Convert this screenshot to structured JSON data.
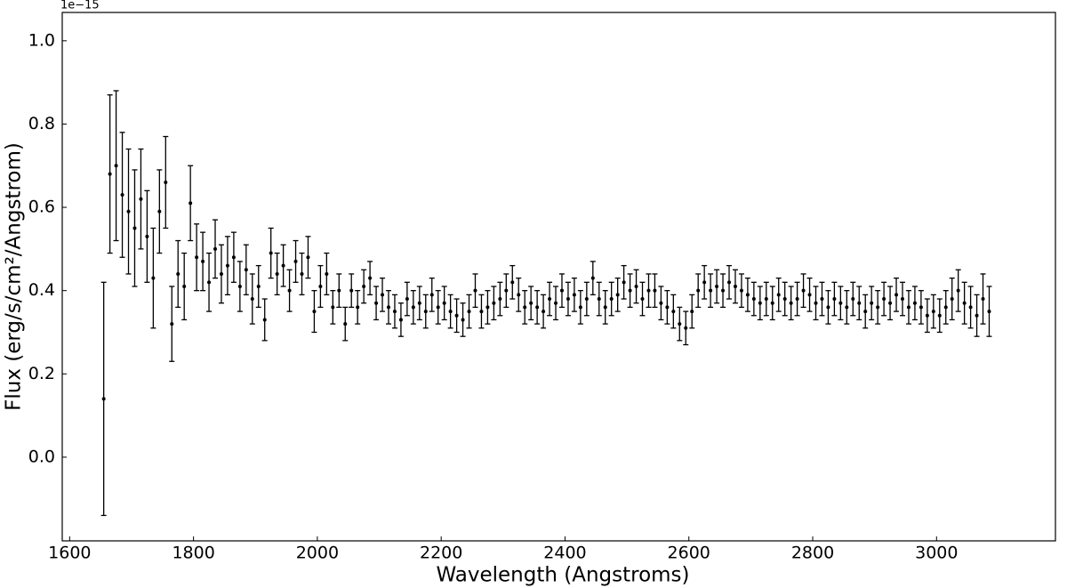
{
  "chart_data": {
    "type": "errorbar-scatter",
    "xlabel": "Wavelength (Angstroms)",
    "ylabel": "Flux (erg/s/cm²/Angstrom)",
    "y_offset_label": "1e−15",
    "xlim": [
      1588,
      3192
    ],
    "ylim": [
      -0.201,
      1.068
    ],
    "xticks": [
      1600,
      1800,
      2000,
      2200,
      2400,
      2600,
      2800,
      3000
    ],
    "yticks": [
      {
        "value": 0,
        "label": "0.0"
      },
      0.2,
      0.4,
      0.6,
      0.8,
      {
        "value": 1,
        "label": "1.0"
      }
    ],
    "series": [
      {
        "color": "#000000",
        "x": [
          1655,
          1665,
          1675,
          1685,
          1695,
          1705,
          1715,
          1725,
          1735,
          1745,
          1755,
          1765,
          1775,
          1785,
          1795,
          1805,
          1815,
          1825,
          1835,
          1845,
          1855,
          1865,
          1875,
          1885,
          1895,
          1905,
          1915,
          1925,
          1935,
          1945,
          1955,
          1965,
          1975,
          1985,
          1995,
          2005,
          2015,
          2025,
          2035,
          2045,
          2055,
          2065,
          2075,
          2085,
          2095,
          2105,
          2115,
          2125,
          2135,
          2145,
          2155,
          2165,
          2175,
          2185,
          2195,
          2205,
          2215,
          2225,
          2235,
          2245,
          2255,
          2265,
          2275,
          2285,
          2295,
          2305,
          2315,
          2325,
          2335,
          2345,
          2355,
          2365,
          2375,
          2385,
          2395,
          2405,
          2415,
          2425,
          2435,
          2445,
          2455,
          2465,
          2475,
          2485,
          2495,
          2505,
          2515,
          2525,
          2535,
          2545,
          2555,
          2565,
          2575,
          2585,
          2595,
          2605,
          2615,
          2625,
          2635,
          2645,
          2655,
          2665,
          2675,
          2685,
          2695,
          2705,
          2715,
          2725,
          2735,
          2745,
          2755,
          2765,
          2775,
          2785,
          2795,
          2805,
          2815,
          2825,
          2835,
          2845,
          2855,
          2865,
          2875,
          2885,
          2895,
          2905,
          2915,
          2925,
          2935,
          2945,
          2955,
          2965,
          2975,
          2985,
          2995,
          3005,
          3015,
          3025,
          3035,
          3045,
          3055,
          3065,
          3075,
          3085
        ],
        "values": [
          0.14,
          0.68,
          0.7,
          0.63,
          0.59,
          0.55,
          0.62,
          0.53,
          0.43,
          0.59,
          0.66,
          0.32,
          0.44,
          0.41,
          0.61,
          0.48,
          0.47,
          0.42,
          0.5,
          0.44,
          0.46,
          0.48,
          0.41,
          0.45,
          0.38,
          0.41,
          0.33,
          0.49,
          0.44,
          0.46,
          0.4,
          0.47,
          0.44,
          0.48,
          0.35,
          0.41,
          0.44,
          0.36,
          0.4,
          0.32,
          0.4,
          0.36,
          0.41,
          0.43,
          0.37,
          0.39,
          0.36,
          0.35,
          0.33,
          0.38,
          0.36,
          0.37,
          0.35,
          0.39,
          0.36,
          0.37,
          0.35,
          0.34,
          0.33,
          0.35,
          0.4,
          0.35,
          0.36,
          0.37,
          0.38,
          0.4,
          0.42,
          0.39,
          0.36,
          0.37,
          0.36,
          0.35,
          0.38,
          0.37,
          0.4,
          0.38,
          0.39,
          0.36,
          0.38,
          0.43,
          0.38,
          0.36,
          0.38,
          0.39,
          0.42,
          0.4,
          0.41,
          0.38,
          0.4,
          0.4,
          0.37,
          0.36,
          0.35,
          0.32,
          0.31,
          0.35,
          0.4,
          0.42,
          0.4,
          0.41,
          0.4,
          0.42,
          0.41,
          0.4,
          0.39,
          0.38,
          0.37,
          0.38,
          0.37,
          0.39,
          0.38,
          0.37,
          0.38,
          0.4,
          0.39,
          0.37,
          0.38,
          0.36,
          0.38,
          0.37,
          0.36,
          0.38,
          0.37,
          0.35,
          0.37,
          0.36,
          0.38,
          0.37,
          0.39,
          0.38,
          0.36,
          0.37,
          0.36,
          0.34,
          0.35,
          0.34,
          0.36,
          0.38,
          0.4,
          0.37,
          0.36,
          0.34,
          0.38,
          0.35
        ],
        "errors": [
          0.28,
          0.19,
          0.18,
          0.15,
          0.15,
          0.14,
          0.12,
          0.11,
          0.12,
          0.1,
          0.11,
          0.09,
          0.08,
          0.08,
          0.09,
          0.08,
          0.07,
          0.07,
          0.07,
          0.07,
          0.07,
          0.06,
          0.06,
          0.06,
          0.06,
          0.05,
          0.05,
          0.06,
          0.05,
          0.05,
          0.05,
          0.05,
          0.05,
          0.05,
          0.05,
          0.05,
          0.05,
          0.04,
          0.04,
          0.04,
          0.04,
          0.04,
          0.04,
          0.04,
          0.04,
          0.04,
          0.04,
          0.04,
          0.04,
          0.04,
          0.04,
          0.04,
          0.04,
          0.04,
          0.04,
          0.04,
          0.04,
          0.04,
          0.04,
          0.04,
          0.04,
          0.04,
          0.04,
          0.04,
          0.04,
          0.04,
          0.04,
          0.04,
          0.04,
          0.04,
          0.04,
          0.04,
          0.04,
          0.04,
          0.04,
          0.04,
          0.04,
          0.04,
          0.04,
          0.04,
          0.04,
          0.04,
          0.04,
          0.04,
          0.04,
          0.04,
          0.04,
          0.04,
          0.04,
          0.04,
          0.04,
          0.04,
          0.04,
          0.04,
          0.04,
          0.04,
          0.04,
          0.04,
          0.04,
          0.04,
          0.04,
          0.04,
          0.04,
          0.04,
          0.04,
          0.04,
          0.04,
          0.04,
          0.04,
          0.04,
          0.04,
          0.04,
          0.04,
          0.04,
          0.04,
          0.04,
          0.04,
          0.04,
          0.04,
          0.04,
          0.04,
          0.04,
          0.04,
          0.04,
          0.04,
          0.04,
          0.04,
          0.04,
          0.04,
          0.04,
          0.04,
          0.04,
          0.04,
          0.04,
          0.04,
          0.04,
          0.04,
          0.05,
          0.05,
          0.05,
          0.05,
          0.05,
          0.06,
          0.06
        ]
      }
    ]
  }
}
